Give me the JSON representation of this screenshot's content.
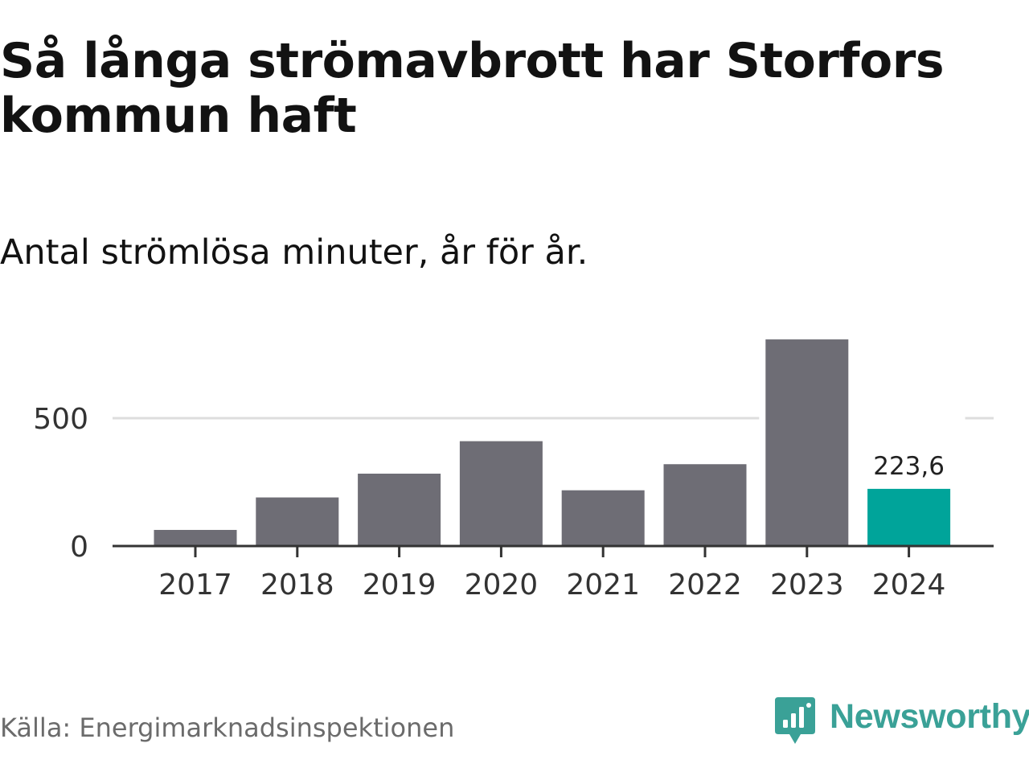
{
  "title": "Så långa strömavbrott har Storfors kommun haft",
  "subtitle": "Antal strömlösa minuter, år för år.",
  "source": "Källa: Energimarknadsinspektionen",
  "brand": "Newsworthy",
  "colors": {
    "bar": "#6e6d75",
    "highlight": "#00a49a",
    "gridline": "#dddddd",
    "axis": "#333333",
    "brand": "#3aa197"
  },
  "chart_data": {
    "type": "bar",
    "title": "Så långa strömavbrott har Storfors kommun haft",
    "subtitle": "Antal strömlösa minuter, år för år.",
    "categories": [
      "2017",
      "2018",
      "2019",
      "2020",
      "2021",
      "2022",
      "2023",
      "2024"
    ],
    "values": [
      63,
      190,
      283,
      410,
      218,
      320,
      808,
      223.6
    ],
    "highlight_index": 7,
    "data_labels": [
      {
        "index": 7,
        "text": "223,6"
      }
    ],
    "yticks": [
      0,
      500
    ],
    "ylim": [
      0,
      850
    ],
    "grid": true,
    "xlabel": "",
    "ylabel": ""
  }
}
